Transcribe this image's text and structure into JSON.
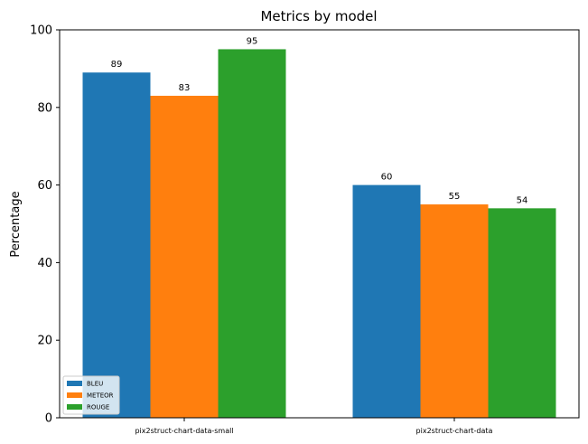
{
  "chart_data": {
    "type": "bar",
    "title": "Metrics by model",
    "xlabel": "",
    "ylabel": "Percentage",
    "categories": [
      "pix2struct-chart-data-small",
      "pix2struct-chart-data"
    ],
    "series": [
      {
        "name": "BLEU",
        "values": [
          89,
          60
        ],
        "color": "#1f77b4"
      },
      {
        "name": "METEOR",
        "values": [
          83,
          55
        ],
        "color": "#ff7f0e"
      },
      {
        "name": "ROUGE",
        "values": [
          95,
          54
        ],
        "color": "#2ca02c"
      }
    ],
    "ylim": [
      0,
      100
    ],
    "yticks": [
      0,
      20,
      40,
      60,
      80,
      100
    ],
    "grid": false,
    "legend_position": "bottom-left"
  }
}
